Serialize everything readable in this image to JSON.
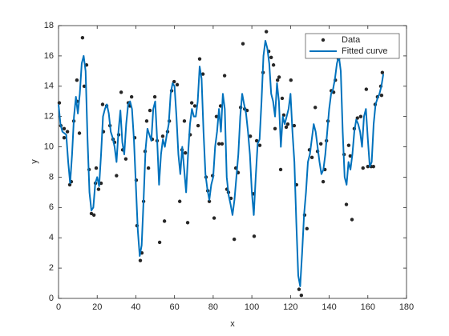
{
  "chart_data": {
    "type": "scatter",
    "xlabel": "x",
    "ylabel": "y",
    "xlim": [
      0,
      180
    ],
    "ylim": [
      0,
      18
    ],
    "xticks": [
      0,
      20,
      40,
      60,
      80,
      100,
      120,
      140,
      160,
      180
    ],
    "yticks": [
      0,
      2,
      4,
      6,
      8,
      10,
      12,
      14,
      16,
      18
    ],
    "legend": "top-right",
    "series": [
      {
        "name": "Data",
        "type": "scatter",
        "color": "#262626",
        "x": [
          0.4,
          1.2,
          2.9,
          2.9,
          4.6,
          5.8,
          6.6,
          7.9,
          9.5,
          9.5,
          10.8,
          12.4,
          13.3,
          14.5,
          15.8,
          17.0,
          18.3,
          19.1,
          19.5,
          20.7,
          22.0,
          22.8,
          23.2,
          24.9,
          26.6,
          28.2,
          29.0,
          30.0,
          31.1,
          32.4,
          33.2,
          34.8,
          36.1,
          36.9,
          37.8,
          39.4,
          40.2,
          40.6,
          42.3,
          43.1,
          44.0,
          44.8,
          45.6,
          46.5,
          47.3,
          48.5,
          49.8,
          51.0,
          52.3,
          53.9,
          54.8,
          56.4,
          57.3,
          58.5,
          59.8,
          61.4,
          62.7,
          63.9,
          65.1,
          65.6,
          66.8,
          68.1,
          68.9,
          70.5,
          72.2,
          73.0,
          74.7,
          76.3,
          77.2,
          78.0,
          79.7,
          80.5,
          81.7,
          83.0,
          83.8,
          84.6,
          85.9,
          87.1,
          87.9,
          89.2,
          90.9,
          91.7,
          92.9,
          94.2,
          95.4,
          96.3,
          97.5,
          99.2,
          100.8,
          101.2,
          102.5,
          104.1,
          105.8,
          107.5,
          108.7,
          110.0,
          111.2,
          112.0,
          113.3,
          114.1,
          114.9,
          115.7,
          116.5,
          117.8,
          118.6,
          120.2,
          121.9,
          123.1,
          124.4,
          125.6,
          127.3,
          128.5,
          129.8,
          131.1,
          132.8,
          134.0,
          135.7,
          136.9,
          137.8,
          138.6,
          139.4,
          141.1,
          142.3,
          143.2,
          144.8,
          146.5,
          147.7,
          148.9,
          150.1,
          150.9,
          151.8,
          153.0,
          154.6,
          156.3,
          157.5,
          159.2,
          160.0,
          161.7,
          162.9,
          163.8,
          165.0,
          166.7,
          167.1,
          167.5
        ],
        "values": [
          12.9,
          11.4,
          10.6,
          11.2,
          11.0,
          7.5,
          7.7,
          11.7,
          14.4,
          13.0,
          10.9,
          17.2,
          14.0,
          15.4,
          8.5,
          5.6,
          5.5,
          7.6,
          8.6,
          7.2,
          7.6,
          12.8,
          11.0,
          12.7,
          11.4,
          10.5,
          10.3,
          8.1,
          10.8,
          13.6,
          9.8,
          9.2,
          12.9,
          12.7,
          13.3,
          10.6,
          7.8,
          4.8,
          2.5,
          3.0,
          6.4,
          9.7,
          11.7,
          8.6,
          12.4,
          10.5,
          13.3,
          10.4,
          3.7,
          10.7,
          5.1,
          11.0,
          11.7,
          13.7,
          14.3,
          14.1,
          6.4,
          9.8,
          11.7,
          9.6,
          5.0,
          10.8,
          12.9,
          12.7,
          11.4,
          15.8,
          14.8,
          8.0,
          7.1,
          6.4,
          8.1,
          5.3,
          12.0,
          10.2,
          12.7,
          10.2,
          14.7,
          7.2,
          7.0,
          6.6,
          3.9,
          8.6,
          8.3,
          12.6,
          16.8,
          12.5,
          12.4,
          10.7,
          6.9,
          4.1,
          10.4,
          10.1,
          14.9,
          17.6,
          16.3,
          15.9,
          15.4,
          11.2,
          14.4,
          14.6,
          8.5,
          13.2,
          12.1,
          11.3,
          11.5,
          14.4,
          11.4,
          7.5,
          0.6,
          0.2,
          5.5,
          4.6,
          9.8,
          9.3,
          12.6,
          9.7,
          10.2,
          7.7,
          8.5,
          10.4,
          11.7,
          13.7,
          13.6,
          14.4,
          15.8,
          16.3,
          9.5,
          6.2,
          10.1,
          9.4,
          5.2,
          11.2,
          11.9,
          12.0,
          8.6,
          13.8,
          8.7,
          8.7,
          8.7,
          12.8,
          13.3,
          14.0,
          13.4,
          14.9
        ]
      },
      {
        "name": "Fitted curve",
        "type": "line",
        "color": "#0072bd",
        "x": [
          0,
          1,
          2,
          3,
          4,
          5,
          6,
          7,
          8,
          9,
          10,
          11,
          12,
          13,
          14,
          15,
          16,
          17,
          18,
          19,
          20,
          21,
          22,
          23,
          24,
          25,
          26,
          27,
          28,
          29,
          30,
          31,
          32,
          33,
          34,
          35,
          36,
          37,
          38,
          39,
          40,
          41,
          42,
          43,
          44,
          45,
          46,
          47,
          48,
          49,
          50,
          51,
          52,
          53,
          54,
          55,
          56,
          57,
          58,
          59,
          60,
          61,
          62,
          63,
          64,
          65,
          66,
          67,
          68,
          69,
          70,
          71,
          72,
          73,
          74,
          75,
          76,
          77,
          78,
          79,
          80,
          81,
          82,
          83,
          84,
          85,
          86,
          87,
          88,
          89,
          90,
          91,
          92,
          93,
          94,
          95,
          96,
          97,
          98,
          99,
          100,
          101,
          102,
          103,
          104,
          105,
          106,
          107,
          108,
          109,
          110,
          111,
          112,
          113,
          114,
          115,
          116,
          117,
          118,
          119,
          120,
          121,
          122,
          123,
          124,
          125,
          126,
          127,
          128,
          129,
          130,
          131,
          132,
          133,
          134,
          135,
          136,
          137,
          138,
          139,
          140,
          141,
          142,
          143,
          144,
          145,
          146,
          147,
          148,
          149,
          150,
          151,
          152,
          153,
          154,
          155,
          156,
          157,
          158,
          159,
          160,
          161,
          162,
          163,
          164,
          165,
          166,
          167,
          168
        ],
        "values": [
          12.8,
          11.5,
          11.0,
          10.9,
          10.8,
          9.0,
          7.6,
          9.5,
          12.0,
          13.3,
          12.2,
          13.5,
          15.5,
          16.0,
          15.0,
          10.5,
          7.0,
          5.8,
          6.0,
          7.6,
          8.0,
          7.4,
          9.5,
          12.0,
          12.5,
          12.8,
          12.2,
          11.0,
          10.6,
          10.0,
          9.0,
          11.0,
          12.4,
          10.3,
          9.5,
          11.5,
          12.8,
          13.0,
          12.5,
          10.5,
          7.5,
          4.5,
          2.8,
          3.5,
          6.5,
          9.8,
          11.2,
          10.8,
          10.4,
          12.5,
          13.0,
          10.5,
          7.5,
          9.5,
          10.5,
          10.0,
          10.8,
          11.5,
          13.5,
          14.2,
          14.0,
          12.0,
          9.5,
          8.2,
          10.0,
          8.5,
          7.0,
          9.5,
          11.5,
          12.5,
          12.0,
          12.0,
          13.0,
          15.3,
          14.5,
          11.0,
          8.2,
          7.2,
          6.5,
          7.5,
          8.0,
          10.0,
          11.0,
          12.5,
          11.0,
          13.5,
          12.5,
          8.0,
          6.8,
          6.2,
          5.5,
          6.5,
          8.0,
          9.5,
          12.0,
          13.5,
          12.8,
          12.2,
          11.0,
          9.5,
          7.0,
          5.5,
          8.0,
          10.2,
          10.5,
          13.0,
          16.0,
          17.0,
          16.5,
          15.5,
          13.5,
          13.0,
          12.0,
          14.2,
          13.0,
          10.0,
          12.0,
          11.5,
          12.0,
          12.5,
          13.5,
          11.0,
          9.0,
          5.0,
          1.5,
          0.8,
          3.0,
          5.5,
          7.0,
          9.0,
          9.5,
          10.5,
          11.5,
          11.0,
          10.0,
          9.0,
          8.2,
          8.5,
          9.5,
          11.0,
          12.5,
          13.5,
          13.8,
          14.5,
          15.5,
          16.0,
          15.0,
          11.0,
          8.0,
          7.5,
          9.0,
          8.5,
          9.5,
          11.0,
          11.8,
          11.5,
          11.0,
          10.0,
          12.0,
          12.5,
          10.5,
          8.7,
          9.0,
          11.5,
          12.8,
          13.2,
          13.5,
          14.0,
          14.8
        ]
      }
    ]
  }
}
